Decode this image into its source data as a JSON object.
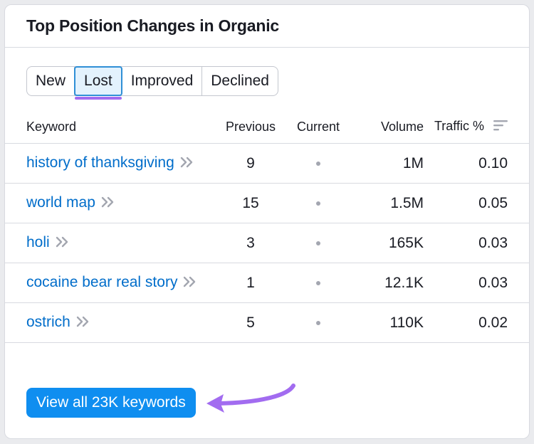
{
  "card": {
    "title": "Top Position Changes in Organic"
  },
  "tabs": [
    {
      "label": "New",
      "active": false
    },
    {
      "label": "Lost",
      "active": true
    },
    {
      "label": "Improved",
      "active": false
    },
    {
      "label": "Declined",
      "active": false
    }
  ],
  "table": {
    "columns": {
      "keyword": "Keyword",
      "previous": "Previous",
      "current": "Current",
      "volume": "Volume",
      "traffic": "Traffic %"
    },
    "rows": [
      {
        "keyword": "history of thanksgiving",
        "previous": "9",
        "volume": "1M",
        "traffic": "0.10"
      },
      {
        "keyword": "world map",
        "previous": "15",
        "volume": "1.5M",
        "traffic": "0.05"
      },
      {
        "keyword": "holi",
        "previous": "3",
        "volume": "165K",
        "traffic": "0.03"
      },
      {
        "keyword": "cocaine bear real story",
        "previous": "1",
        "volume": "12.1K",
        "traffic": "0.03"
      },
      {
        "keyword": "ostrich",
        "previous": "5",
        "volume": "110K",
        "traffic": "0.02"
      }
    ]
  },
  "cta": {
    "label": "View all 23K keywords"
  },
  "colors": {
    "link": "#006dca",
    "button": "#0f8ef0",
    "tab_active_bg": "#e3f2fd",
    "tab_active_border": "#2f8fd6",
    "annotation_arrow": "#a26cf0"
  },
  "icons": {
    "chevron": "double-chevron-right-icon",
    "sort": "sort-descending-icon",
    "arrow": "annotation-arrow-icon"
  }
}
